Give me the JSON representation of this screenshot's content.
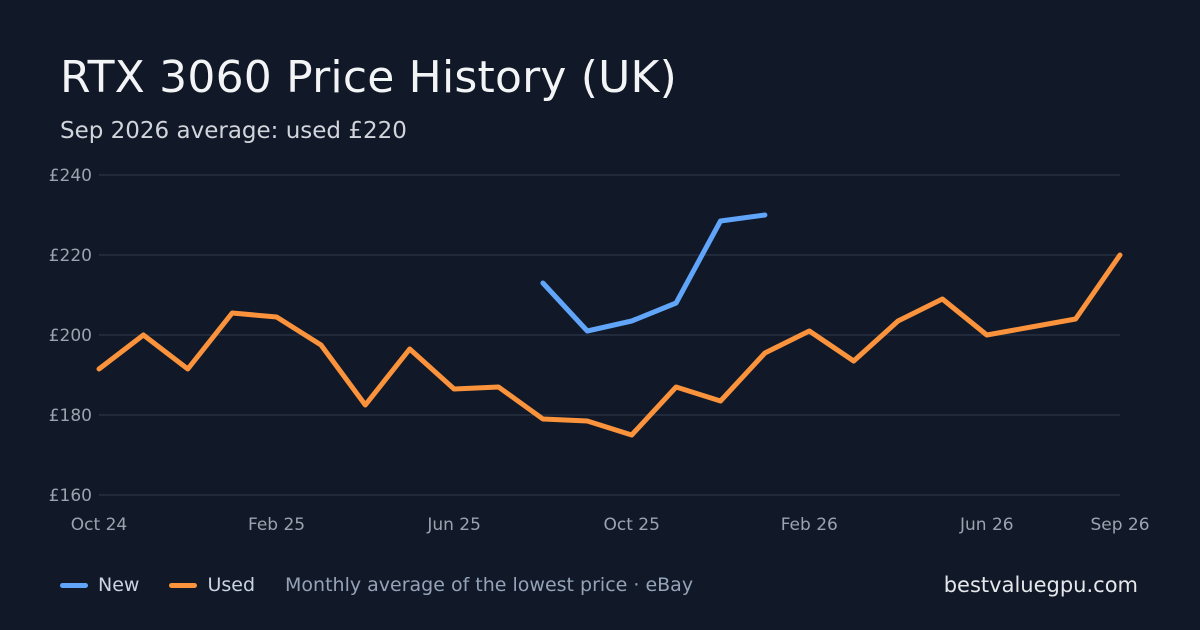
{
  "title": "RTX 3060 Price History (UK)",
  "subtitle": "Sep 2026 average: used £220",
  "legend": {
    "new_label": "New",
    "used_label": "Used",
    "note": "Monthly average of the lowest price · eBay"
  },
  "site": "bestvaluegpu.com",
  "colors": {
    "background": "#111827",
    "new": "#60a5fa",
    "used": "#fb923c",
    "grid": "#263041",
    "tick": "#9ca3af"
  },
  "chart_data": {
    "type": "line",
    "x": [
      "2024-10",
      "2024-11",
      "2024-12",
      "2025-01",
      "2025-02",
      "2025-03",
      "2025-04",
      "2025-05",
      "2025-06",
      "2025-07",
      "2025-08",
      "2025-09",
      "2025-10",
      "2025-11",
      "2025-12",
      "2026-01",
      "2026-02",
      "2026-03",
      "2026-04",
      "2026-05",
      "2026-06",
      "2026-07",
      "2026-08",
      "2026-09"
    ],
    "x_tick_labels": [
      "Oct 24",
      "Feb 25",
      "Jun 25",
      "Oct 25",
      "Feb 26",
      "Jun 26",
      "Sep 26"
    ],
    "x_tick_positions": [
      "2024-10",
      "2025-02",
      "2025-06",
      "2025-10",
      "2026-02",
      "2026-06",
      "2026-09"
    ],
    "y_tick_labels": [
      "£240",
      "£220",
      "£200",
      "£180",
      "£160"
    ],
    "y_tick_values": [
      240,
      220,
      200,
      180,
      160
    ],
    "ylim": [
      160,
      240
    ],
    "grid": "horizontal",
    "series": [
      {
        "name": "New",
        "values": [
          null,
          null,
          null,
          null,
          null,
          null,
          null,
          null,
          null,
          null,
          213,
          201,
          203.5,
          208,
          228.5,
          230,
          null,
          null,
          null,
          null,
          null,
          null,
          null,
          null
        ]
      },
      {
        "name": "Used",
        "values": [
          191.5,
          200,
          191.5,
          205.5,
          204.5,
          197.5,
          182.5,
          196.5,
          186.5,
          187,
          179,
          178.5,
          175,
          187,
          183.5,
          195.5,
          201,
          193.5,
          203.5,
          209,
          200,
          202,
          204,
          220
        ]
      }
    ]
  }
}
